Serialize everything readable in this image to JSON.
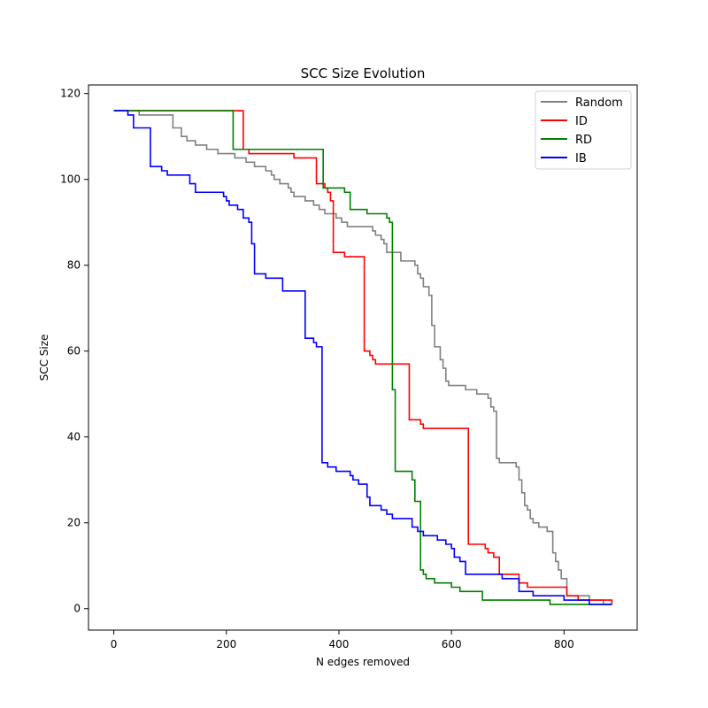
{
  "chart_data": {
    "type": "line",
    "step": true,
    "title": "SCC Size Evolution",
    "xlabel": "N edges removed",
    "ylabel": "SCC Size",
    "xlim": [
      -45,
      930
    ],
    "ylim": [
      -5,
      122
    ],
    "xticks": [
      0,
      200,
      400,
      600,
      800
    ],
    "yticks": [
      0,
      20,
      40,
      60,
      80,
      100,
      120
    ],
    "grid": false,
    "legend_position": "top-right",
    "series": [
      {
        "name": "Random",
        "color": "#808080",
        "points": [
          [
            0,
            116
          ],
          [
            45,
            115
          ],
          [
            105,
            112
          ],
          [
            120,
            110
          ],
          [
            130,
            109
          ],
          [
            145,
            108
          ],
          [
            165,
            107
          ],
          [
            185,
            106
          ],
          [
            215,
            105
          ],
          [
            235,
            104
          ],
          [
            250,
            103
          ],
          [
            270,
            102
          ],
          [
            280,
            101
          ],
          [
            285,
            100
          ],
          [
            295,
            99
          ],
          [
            310,
            98
          ],
          [
            315,
            97
          ],
          [
            320,
            96
          ],
          [
            340,
            95
          ],
          [
            355,
            94
          ],
          [
            365,
            93
          ],
          [
            375,
            92
          ],
          [
            395,
            91
          ],
          [
            405,
            90
          ],
          [
            415,
            89
          ],
          [
            460,
            88
          ],
          [
            465,
            87
          ],
          [
            475,
            86
          ],
          [
            480,
            85
          ],
          [
            485,
            83
          ],
          [
            510,
            81
          ],
          [
            535,
            80
          ],
          [
            540,
            78
          ],
          [
            545,
            77
          ],
          [
            550,
            75
          ],
          [
            560,
            73
          ],
          [
            565,
            66
          ],
          [
            570,
            61
          ],
          [
            580,
            58
          ],
          [
            585,
            56
          ],
          [
            590,
            53
          ],
          [
            595,
            52
          ],
          [
            625,
            51
          ],
          [
            645,
            50
          ],
          [
            665,
            49
          ],
          [
            670,
            47
          ],
          [
            675,
            46
          ],
          [
            680,
            35
          ],
          [
            685,
            34
          ],
          [
            715,
            33
          ],
          [
            720,
            30
          ],
          [
            725,
            27
          ],
          [
            730,
            24
          ],
          [
            735,
            23
          ],
          [
            740,
            21
          ],
          [
            745,
            20
          ],
          [
            755,
            19
          ],
          [
            770,
            18
          ],
          [
            780,
            13
          ],
          [
            785,
            11
          ],
          [
            790,
            9
          ],
          [
            795,
            7
          ],
          [
            805,
            3
          ],
          [
            845,
            2
          ],
          [
            870,
            1
          ],
          [
            885,
            1
          ]
        ]
      },
      {
        "name": "ID",
        "color": "#ff0000",
        "points": [
          [
            0,
            116
          ],
          [
            225,
            116
          ],
          [
            230,
            107
          ],
          [
            240,
            106
          ],
          [
            320,
            105
          ],
          [
            360,
            99
          ],
          [
            375,
            98
          ],
          [
            380,
            97
          ],
          [
            385,
            95
          ],
          [
            390,
            83
          ],
          [
            410,
            82
          ],
          [
            445,
            60
          ],
          [
            455,
            59
          ],
          [
            460,
            58
          ],
          [
            465,
            57
          ],
          [
            525,
            44
          ],
          [
            545,
            43
          ],
          [
            550,
            42
          ],
          [
            630,
            15
          ],
          [
            660,
            14
          ],
          [
            665,
            13
          ],
          [
            675,
            12
          ],
          [
            685,
            8
          ],
          [
            720,
            6
          ],
          [
            735,
            5
          ],
          [
            805,
            3
          ],
          [
            825,
            2
          ],
          [
            880,
            2
          ],
          [
            885,
            1
          ]
        ]
      },
      {
        "name": "RD",
        "color": "#008000",
        "points": [
          [
            0,
            116
          ],
          [
            210,
            116
          ],
          [
            212,
            107
          ],
          [
            370,
            107
          ],
          [
            372,
            98
          ],
          [
            410,
            97
          ],
          [
            420,
            93
          ],
          [
            450,
            92
          ],
          [
            485,
            91
          ],
          [
            490,
            90
          ],
          [
            495,
            51
          ],
          [
            500,
            32
          ],
          [
            530,
            30
          ],
          [
            535,
            25
          ],
          [
            545,
            9
          ],
          [
            550,
            8
          ],
          [
            555,
            7
          ],
          [
            570,
            6
          ],
          [
            600,
            5
          ],
          [
            615,
            4
          ],
          [
            655,
            2
          ],
          [
            775,
            1
          ],
          [
            885,
            1
          ]
        ]
      },
      {
        "name": "IB",
        "color": "#0000ff",
        "points": [
          [
            0,
            116
          ],
          [
            25,
            115
          ],
          [
            35,
            112
          ],
          [
            65,
            103
          ],
          [
            85,
            102
          ],
          [
            95,
            101
          ],
          [
            135,
            99
          ],
          [
            145,
            97
          ],
          [
            195,
            96
          ],
          [
            200,
            95
          ],
          [
            205,
            94
          ],
          [
            220,
            93
          ],
          [
            230,
            91
          ],
          [
            240,
            90
          ],
          [
            245,
            85
          ],
          [
            250,
            78
          ],
          [
            270,
            77
          ],
          [
            300,
            74
          ],
          [
            340,
            63
          ],
          [
            355,
            62
          ],
          [
            360,
            61
          ],
          [
            370,
            34
          ],
          [
            380,
            33
          ],
          [
            395,
            32
          ],
          [
            420,
            31
          ],
          [
            425,
            30
          ],
          [
            435,
            29
          ],
          [
            450,
            26
          ],
          [
            455,
            24
          ],
          [
            475,
            23
          ],
          [
            485,
            22
          ],
          [
            495,
            21
          ],
          [
            530,
            19
          ],
          [
            540,
            18
          ],
          [
            550,
            17
          ],
          [
            575,
            16
          ],
          [
            590,
            15
          ],
          [
            600,
            14
          ],
          [
            605,
            12
          ],
          [
            615,
            11
          ],
          [
            625,
            8
          ],
          [
            690,
            7
          ],
          [
            720,
            4
          ],
          [
            745,
            3
          ],
          [
            800,
            2
          ],
          [
            845,
            1
          ],
          [
            885,
            1
          ]
        ]
      }
    ]
  }
}
